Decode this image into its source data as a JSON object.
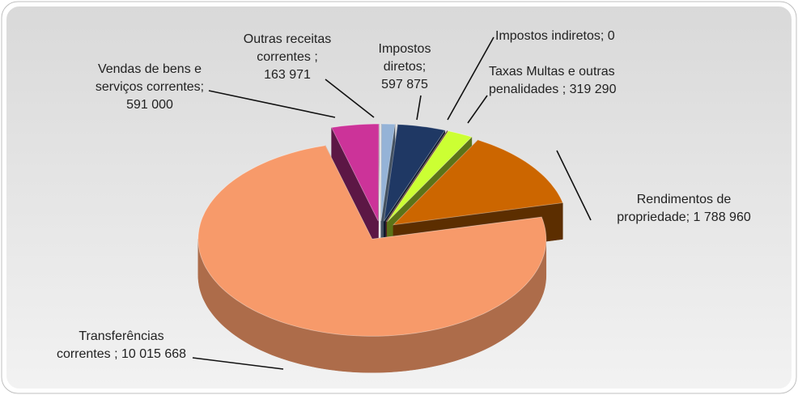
{
  "chart_data": {
    "type": "pie",
    "labels": [
      [
        "Impostos",
        "diretos;",
        "597 875"
      ],
      [
        "Impostos indiretos; 0"
      ],
      [
        "Taxas Multas e outras",
        "penalidades ; 319 290"
      ],
      [
        "Rendimentos de",
        "propriedade; 1 788 960"
      ],
      [
        "Transferências",
        "correntes ; 10 015 668"
      ],
      [
        "Vendas de bens e",
        "serviços correntes;",
        "591 000"
      ],
      [
        "Outras receitas",
        "correntes ;",
        "163 971"
      ]
    ],
    "values": [
      597875,
      0,
      319290,
      1788960,
      10015668,
      591000,
      163971
    ],
    "colors": [
      "#1f3864",
      "#c0504d",
      "#ccff33",
      "#cc6600",
      "#f79a6a",
      "#cc3399",
      "#95b3d7"
    ]
  }
}
